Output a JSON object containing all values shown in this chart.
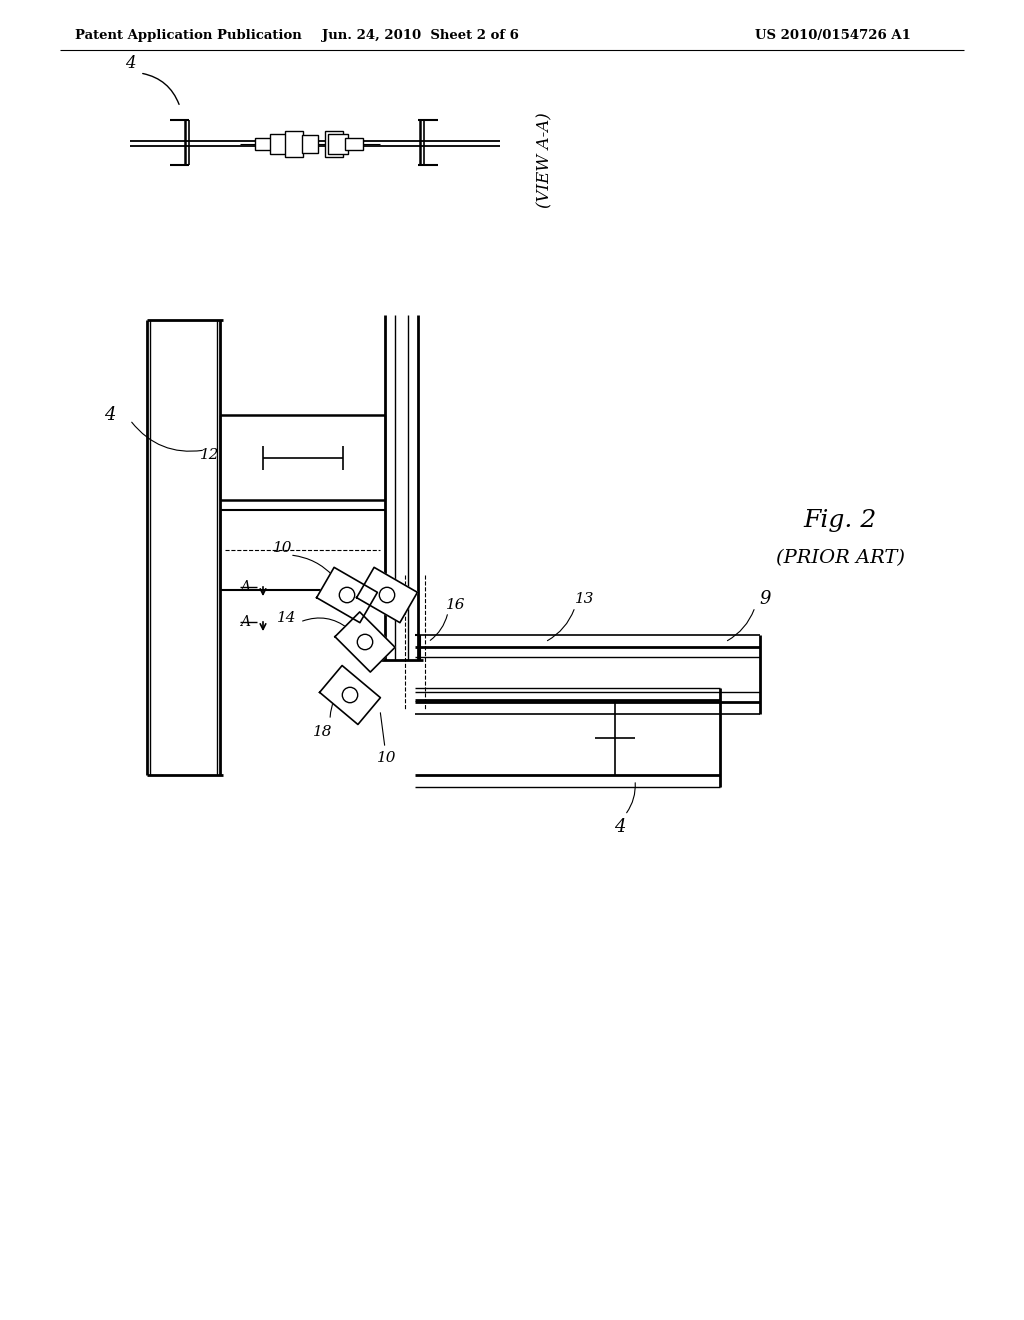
{
  "header_left": "Patent Application Publication",
  "header_mid": "Jun. 24, 2010  Sheet 2 of 6",
  "header_right": "US 2010/0154726 A1",
  "fig2_label": "Fig. 2",
  "fig2_sub": "(PRIOR ART)",
  "view_label": "(VIEW A-A)",
  "bg_color": "#ffffff",
  "line_color": "#000000"
}
